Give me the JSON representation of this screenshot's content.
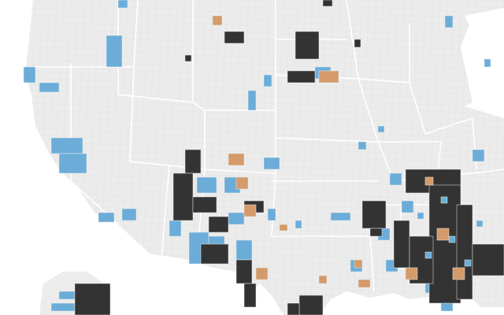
{
  "map": {
    "land": "#ececec",
    "water": "#ffffff",
    "border": "#ffffff",
    "county_line": "#d8d8d8",
    "colors": [
      "#6badd8",
      "#333333",
      "#d49a6a"
    ]
  }
}
